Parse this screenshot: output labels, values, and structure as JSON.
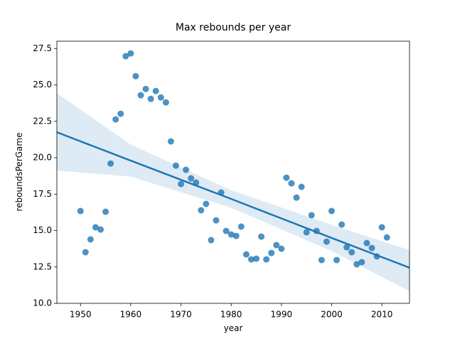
{
  "chart_data": {
    "type": "scatter",
    "title": "Max rebounds per year",
    "xlabel": "year",
    "ylabel": "reboundsPerGame",
    "color": "#1f77b4",
    "x": [
      1950,
      1951,
      1952,
      1953,
      1954,
      1955,
      1956,
      1957,
      1958,
      1959,
      1960,
      1961,
      1962,
      1963,
      1964,
      1965,
      1966,
      1967,
      1968,
      1969,
      1970,
      1971,
      1972,
      1973,
      1974,
      1975,
      1976,
      1977,
      1978,
      1979,
      1980,
      1981,
      1982,
      1983,
      1984,
      1985,
      1986,
      1987,
      1988,
      1989,
      1990,
      1991,
      1992,
      1993,
      1994,
      1995,
      1996,
      1997,
      1998,
      1999,
      2000,
      2001,
      2002,
      2003,
      2004,
      2005,
      2006,
      2007,
      2008,
      2009,
      2010,
      2011
    ],
    "values": [
      16.34,
      13.51,
      14.39,
      15.22,
      15.07,
      16.29,
      19.6,
      22.63,
      23.02,
      26.97,
      27.16,
      25.6,
      24.29,
      24.72,
      24.04,
      24.58,
      24.14,
      23.8,
      21.12,
      19.46,
      18.19,
      19.17,
      18.58,
      18.29,
      16.39,
      16.83,
      14.34,
      15.7,
      17.61,
      14.97,
      14.73,
      14.63,
      15.27,
      13.36,
      13.02,
      13.07,
      14.58,
      13.02,
      13.46,
      14.0,
      13.75,
      18.63,
      18.24,
      17.26,
      18.0,
      14.88,
      16.05,
      14.97,
      12.97,
      14.24,
      16.34,
      12.97,
      15.41,
      13.85,
      13.51,
      12.68,
      12.83,
      14.14,
      13.8,
      13.22,
      15.22,
      14.53
    ],
    "fit": {
      "x": [
        1945.3,
        1960,
        1980,
        2000,
        2015.5
      ],
      "values": [
        21.75,
        19.8,
        17.17,
        14.49,
        12.45
      ],
      "lower": [
        19.12,
        18.7,
        16.57,
        13.59,
        10.83
      ],
      "upper": [
        24.43,
        20.9,
        17.77,
        15.39,
        13.66
      ]
    },
    "xlim": [
      1945.3,
      2015.5
    ],
    "ylim": [
      10,
      28
    ],
    "xticks": [
      1950,
      1960,
      1970,
      1980,
      1990,
      2000,
      2010
    ],
    "yticks": [
      {
        "value": 10,
        "label": "10.0"
      },
      {
        "value": 12.5,
        "label": "12.5"
      },
      {
        "value": 15,
        "label": "15.0"
      },
      {
        "value": 17.5,
        "label": "17.5"
      },
      {
        "value": 20,
        "label": "20.0"
      },
      {
        "value": 22.5,
        "label": "22.5"
      },
      {
        "value": 25,
        "label": "25.0"
      },
      {
        "value": 27.5,
        "label": "27.5"
      }
    ]
  }
}
